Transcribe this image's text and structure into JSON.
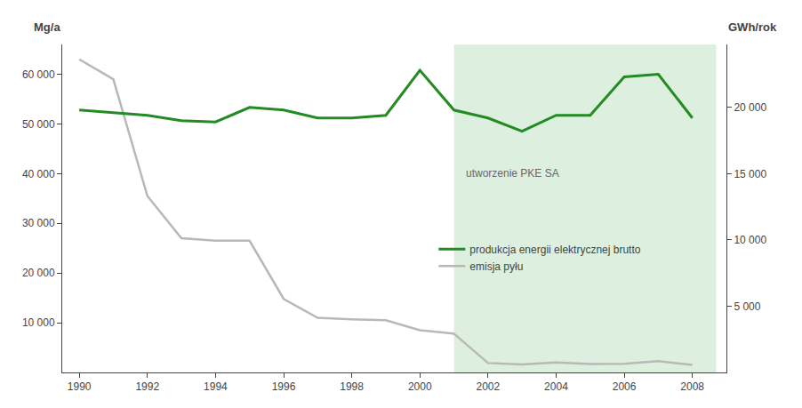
{
  "chart_data": {
    "type": "line",
    "ylabel": "Mg/a",
    "y2label": "GWh/rok",
    "x": [
      1990,
      1991,
      1992,
      1993,
      1994,
      1995,
      1996,
      1997,
      1998,
      1999,
      2000,
      2001,
      2002,
      2003,
      2004,
      2005,
      2006,
      2007,
      2008
    ],
    "series": [
      {
        "name": "emisja pyłu",
        "color": "#b8b8b8",
        "axis": "y",
        "values": [
          63000,
          59000,
          35500,
          27000,
          26500,
          26500,
          14800,
          11000,
          10700,
          10500,
          8500,
          7800,
          1900,
          1600,
          2000,
          1700,
          1750,
          2300,
          1500
        ]
      },
      {
        "name": "produkcja energii elektrycznej brutto",
        "color": "#228B22",
        "axis": "y2",
        "values": [
          19800,
          19600,
          19400,
          19000,
          18900,
          20000,
          19800,
          19200,
          19200,
          19400,
          22800,
          19800,
          19200,
          18200,
          19400,
          19400,
          22300,
          22500,
          19200
        ]
      }
    ],
    "xlim": [
      1989.5,
      2009.0
    ],
    "xticks": [
      1990,
      1992,
      1994,
      1996,
      1998,
      2000,
      2002,
      2004,
      2006,
      2008
    ],
    "ylim": [
      0,
      66000
    ],
    "yticks": [
      {
        "value": 10000,
        "label": "10 000"
      },
      {
        "value": 20000,
        "label": "20 000"
      },
      {
        "value": 30000,
        "label": "30 000"
      },
      {
        "value": 40000,
        "label": "40 000"
      },
      {
        "value": 50000,
        "label": "50 000"
      },
      {
        "value": 60000,
        "label": "60 000"
      }
    ],
    "y2lim": [
      0,
      24750
    ],
    "y2ticks": [
      {
        "value": 5000,
        "label": "5 000"
      },
      {
        "value": 10000,
        "label": "10 000"
      },
      {
        "value": 15000,
        "label": "15 000"
      },
      {
        "value": 20000,
        "label": "20 000"
      }
    ],
    "shaded_region": {
      "x": [
        2001,
        2008.7
      ],
      "color": "#ddf0e0"
    },
    "annotations": [
      {
        "text": "utworzenie PKE SA",
        "x": 2001.3,
        "y": 38500
      }
    ],
    "grid": false,
    "legend": "center"
  }
}
